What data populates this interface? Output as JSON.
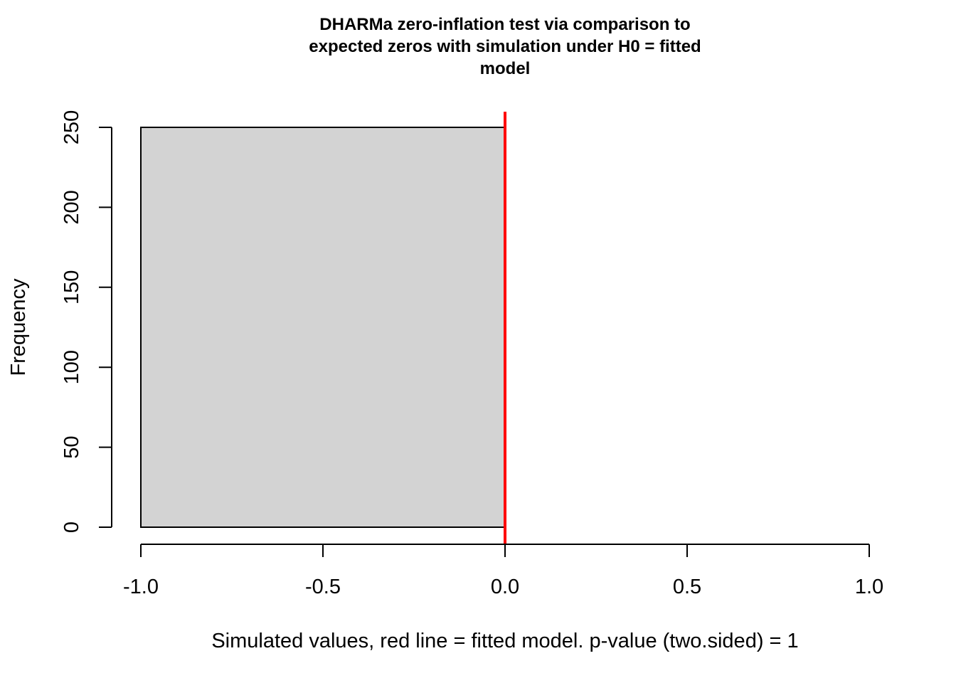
{
  "chart_data": {
    "type": "bar",
    "title_lines": [
      "DHARMa zero-inflation test via comparison to",
      "expected zeros with simulation under H0 = fitted",
      "model"
    ],
    "xlabel": "Simulated values, red line = fitted model. p-value (two.sided) = 1",
    "ylabel": "Frequency",
    "xlim": [
      -1.0,
      1.0
    ],
    "ylim": [
      0,
      250
    ],
    "x_ticks": [
      -1.0,
      -0.5,
      0.0,
      0.5,
      1.0
    ],
    "x_tick_labels": [
      "-1.0",
      "-0.5",
      "0.0",
      "0.5",
      "1.0"
    ],
    "y_ticks": [
      0,
      50,
      100,
      150,
      200,
      250
    ],
    "y_tick_labels": [
      "0",
      "50",
      "100",
      "150",
      "200",
      "250"
    ],
    "bins": [
      {
        "x_start": -1.0,
        "x_end": 0.0,
        "count": 250
      }
    ],
    "reference_line": {
      "x": 0.0,
      "color": "#ff0000"
    },
    "bar_fill": "#d3d3d3",
    "bar_stroke": "#000000",
    "grid": false,
    "legend": "none"
  }
}
